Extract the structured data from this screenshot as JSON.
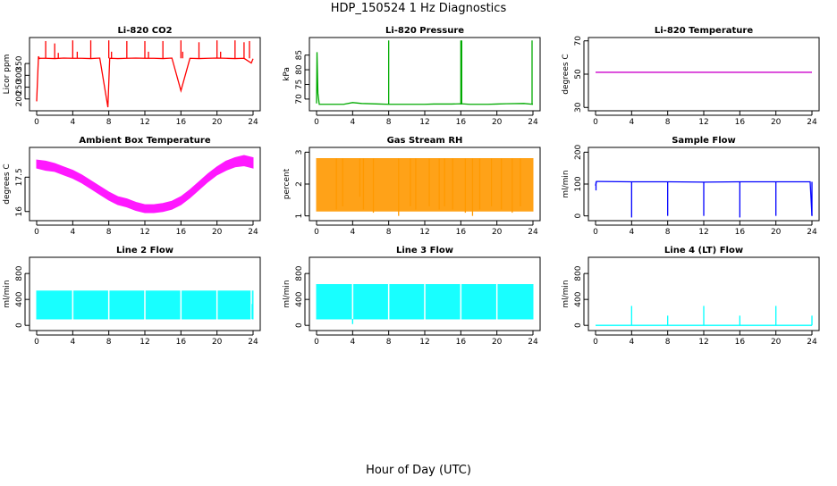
{
  "figure": {
    "title": "HDP_150524  1 Hz Diagnostics",
    "xlabel": "Hour of Day (UTC)"
  },
  "chart_data": [
    {
      "type": "line",
      "title": "Li-820 CO2",
      "ylabel": "Licor ppm",
      "color": "#ff0000",
      "xlim": [
        0,
        24
      ],
      "xticks": [
        0,
        4,
        8,
        12,
        16,
        20,
        24
      ],
      "ylim": [
        150,
        460
      ],
      "yticks": [
        200,
        250,
        300,
        350
      ],
      "series": [
        {
          "style": "line",
          "x": [
            0,
            0.2,
            0.3,
            0.4,
            1,
            2,
            3,
            4,
            5,
            6,
            7,
            7.9,
            8.1,
            9,
            10,
            11,
            12,
            13,
            14,
            15,
            16,
            17,
            18,
            19,
            20,
            21,
            22,
            23,
            23.8,
            24
          ],
          "y": [
            190,
            380,
            371,
            372,
            372,
            371,
            373,
            372,
            372,
            371,
            373,
            165,
            372,
            371,
            372,
            373,
            372,
            372,
            371,
            373,
            235,
            372,
            371,
            372,
            373,
            372,
            371,
            372,
            352,
            370
          ]
        },
        {
          "style": "spikes",
          "baseline": 372,
          "x": [
            1,
            2,
            2.4,
            4,
            4.5,
            6,
            8,
            8.3,
            10,
            12,
            12.4,
            14,
            16,
            16.2,
            18,
            20,
            20.4,
            22,
            23,
            23.6
          ],
          "y": [
            445,
            435,
            395,
            448,
            400,
            448,
            448,
            400,
            445,
            445,
            400,
            445,
            448,
            400,
            440,
            448,
            400,
            448,
            440,
            445
          ]
        }
      ]
    },
    {
      "type": "line",
      "title": "Li-820 Pressure",
      "ylabel": "kPa",
      "color": "#00aa00",
      "xlim": [
        0,
        24
      ],
      "xticks": [
        0,
        4,
        8,
        12,
        16,
        20,
        24
      ],
      "ylim": [
        66,
        91
      ],
      "yticks": [
        70,
        75,
        80,
        85
      ],
      "series": [
        {
          "style": "line",
          "x": [
            0,
            0.05,
            0.15,
            0.3,
            1,
            3,
            4,
            5,
            7,
            8,
            9,
            11,
            12,
            13,
            15,
            16,
            17,
            19,
            20,
            21,
            23,
            24
          ],
          "y": [
            68.5,
            86,
            72,
            68.2,
            68.2,
            68.2,
            68.8,
            68.5,
            68.3,
            68.2,
            68.2,
            68.2,
            68.2,
            68.3,
            68.3,
            68.4,
            68.2,
            68.2,
            68.3,
            68.4,
            68.5,
            68.2
          ]
        },
        {
          "style": "spikes",
          "baseline": 68.2,
          "x": [
            8,
            16,
            16.1,
            23.9
          ],
          "y": [
            90,
            90,
            90,
            90
          ]
        }
      ]
    },
    {
      "type": "line",
      "title": "Li-820 Temperature",
      "ylabel": "degrees C",
      "color": "#cc00cc",
      "xlim": [
        0,
        24
      ],
      "xticks": [
        0,
        4,
        8,
        12,
        16,
        20,
        24
      ],
      "ylim": [
        28,
        72
      ],
      "yticks": [
        30,
        50,
        70
      ],
      "series": [
        {
          "style": "line",
          "x": [
            0,
            24
          ],
          "y": [
            51.1,
            51.1
          ]
        }
      ]
    },
    {
      "type": "line",
      "title": "Ambient Box Temperature",
      "ylabel": "degrees C",
      "color": "#ff00ff",
      "xlim": [
        0,
        24
      ],
      "xticks": [
        0,
        4,
        8,
        12,
        16,
        20,
        24
      ],
      "ylim": [
        15.6,
        18.8
      ],
      "yticks": [
        16.0,
        17.5
      ],
      "series": [
        {
          "style": "band",
          "x": [
            0,
            1,
            2,
            3,
            4,
            5,
            6,
            7,
            8,
            9,
            10,
            11,
            12,
            13,
            14,
            15,
            16,
            17,
            18,
            19,
            20,
            21,
            22,
            23,
            24
          ],
          "low": [
            17.9,
            17.8,
            17.75,
            17.6,
            17.45,
            17.25,
            17.0,
            16.75,
            16.5,
            16.3,
            16.2,
            16.05,
            15.95,
            15.95,
            16.0,
            16.1,
            16.3,
            16.6,
            16.95,
            17.3,
            17.6,
            17.8,
            17.95,
            18.0,
            17.9
          ],
          "high": [
            18.25,
            18.2,
            18.1,
            17.95,
            17.8,
            17.6,
            17.35,
            17.1,
            16.85,
            16.65,
            16.55,
            16.4,
            16.3,
            16.3,
            16.35,
            16.45,
            16.65,
            16.95,
            17.3,
            17.65,
            17.95,
            18.2,
            18.35,
            18.45,
            18.35
          ]
        }
      ]
    },
    {
      "type": "scatter",
      "title": "Gas Stream RH",
      "ylabel": "percent",
      "color": "#ff9900",
      "xlim": [
        0,
        24
      ],
      "xticks": [
        0,
        4,
        8,
        12,
        16,
        20,
        24
      ],
      "ylim": [
        0.85,
        3.15
      ],
      "yticks": [
        1.0,
        2.0,
        3.0
      ],
      "series": [
        {
          "style": "band",
          "x": [
            0,
            24
          ],
          "low": [
            1.15,
            1.15
          ],
          "high": [
            2.8,
            2.8
          ]
        },
        {
          "style": "dips",
          "baseline": 2.8,
          "x": [
            2.2,
            2.9,
            4.8,
            5.2,
            6.3,
            9.1,
            10.4,
            11.0,
            12.5,
            13.6,
            14.2,
            15.1,
            16.5,
            17.3,
            18.1,
            19.4,
            20.5,
            21.7,
            22.6
          ],
          "y": [
            1.2,
            1.3,
            1.6,
            1.2,
            1.1,
            1.0,
            1.3,
            1.2,
            1.3,
            1.2,
            1.3,
            1.2,
            1.1,
            1.0,
            1.2,
            1.3,
            1.2,
            1.1,
            1.3
          ]
        }
      ]
    },
    {
      "type": "line",
      "title": "Sample Flow",
      "ylabel": "ml/min",
      "color": "#0000ff",
      "xlim": [
        0,
        24
      ],
      "xticks": [
        0,
        4,
        8,
        12,
        16,
        20,
        24
      ],
      "ylim": [
        -15,
        215
      ],
      "yticks": [
        0,
        100,
        200
      ],
      "series": [
        {
          "style": "line",
          "x": [
            0,
            0.1,
            0.3,
            4,
            8,
            12,
            16,
            20,
            23.8,
            24
          ],
          "y": [
            95,
            108,
            108,
            107,
            107,
            106,
            107,
            107,
            107,
            0
          ]
        },
        {
          "style": "dips",
          "baseline": 107,
          "x": [
            0.05,
            4,
            8,
            12,
            16,
            20,
            24
          ],
          "y": [
            80,
            -5,
            0,
            0,
            -5,
            0,
            0
          ]
        }
      ]
    },
    {
      "type": "line",
      "title": "Line 2 Flow",
      "ylabel": "ml/min",
      "color": "#00ffff",
      "xlim": [
        0,
        24
      ],
      "xticks": [
        0,
        4,
        8,
        12,
        16,
        20,
        24
      ],
      "ylim": [
        -80,
        1050
      ],
      "yticks": [
        0,
        400,
        800
      ],
      "series": [
        {
          "style": "band",
          "x": [
            0,
            24
          ],
          "low": [
            100,
            100
          ],
          "high": [
            530,
            530
          ]
        },
        {
          "style": "gaps",
          "x": [
            4,
            8,
            12,
            16,
            20,
            23.8
          ]
        },
        {
          "style": "spikes",
          "baseline": 100,
          "x": [
            23.9
          ],
          "y": [
            330
          ]
        }
      ]
    },
    {
      "type": "line",
      "title": "Line 3 Flow",
      "ylabel": "ml/min",
      "color": "#00ffff",
      "xlim": [
        0,
        24
      ],
      "xticks": [
        0,
        4,
        8,
        12,
        16,
        20,
        24
      ],
      "ylim": [
        -80,
        1050
      ],
      "yticks": [
        0,
        400,
        800
      ],
      "series": [
        {
          "style": "band",
          "x": [
            0,
            24
          ],
          "low": [
            100,
            100
          ],
          "high": [
            630,
            630
          ]
        },
        {
          "style": "gaps",
          "x": [
            4,
            8,
            12,
            16,
            20
          ]
        },
        {
          "style": "dips",
          "baseline": 100,
          "x": [
            4
          ],
          "y": [
            20
          ]
        }
      ]
    },
    {
      "type": "line",
      "title": "Line 4 (LT) Flow",
      "ylabel": "ml/min",
      "color": "#00ffff",
      "xlim": [
        0,
        24
      ],
      "xticks": [
        0,
        4,
        8,
        12,
        16,
        20,
        24
      ],
      "ylim": [
        -80,
        1050
      ],
      "yticks": [
        0,
        400,
        800
      ],
      "series": [
        {
          "style": "line",
          "x": [
            0,
            24
          ],
          "y": [
            0,
            0
          ]
        },
        {
          "style": "spikes",
          "baseline": 0,
          "x": [
            4,
            8,
            12,
            16,
            20,
            24
          ],
          "y": [
            300,
            150,
            300,
            150,
            300,
            150
          ]
        }
      ]
    }
  ]
}
